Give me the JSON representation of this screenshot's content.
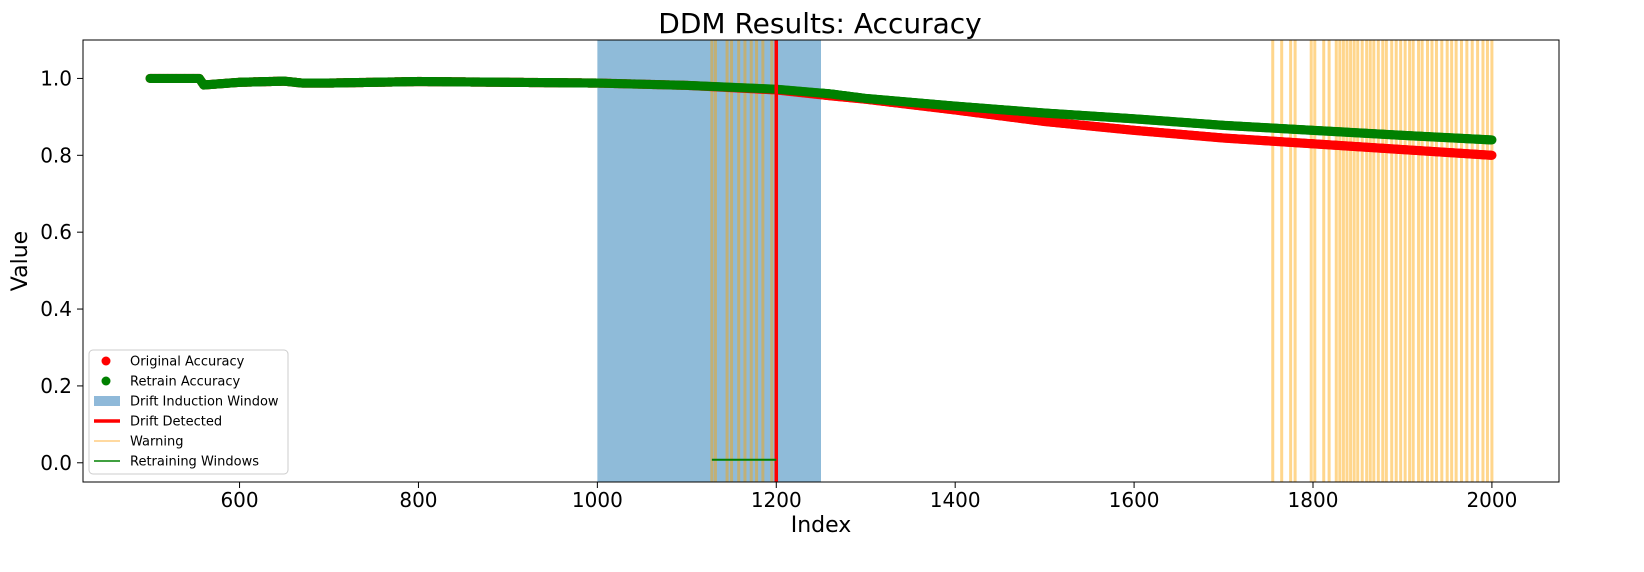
{
  "chart_data": {
    "type": "scatter",
    "title": "DDM Results: Accuracy",
    "xlabel": "Index",
    "ylabel": "Value",
    "xlim": [
      425,
      2075
    ],
    "ylim": [
      -0.05,
      1.1
    ],
    "xticks": [
      600,
      800,
      1000,
      1200,
      1400,
      1600,
      1800,
      2000
    ],
    "yticks": [
      0.0,
      0.2,
      0.4,
      0.6,
      0.8,
      1.0
    ],
    "xtick_labels": [
      "600",
      "800",
      "1000",
      "1200",
      "1400",
      "1600",
      "1800",
      "2000"
    ],
    "ytick_labels": [
      "0.0",
      "0.2",
      "0.4",
      "0.6",
      "0.8",
      "1.0"
    ],
    "grid": false,
    "legend_position": "lower-left",
    "series": [
      {
        "name": "Original Accuracy",
        "color": "#ff0000",
        "x": [
          500,
          555,
          560,
          600,
          650,
          670,
          700,
          800,
          900,
          1000,
          1100,
          1200,
          1260,
          1300,
          1400,
          1500,
          1600,
          1700,
          1800,
          1900,
          2000
        ],
        "y": [
          1.0,
          1.0,
          0.983,
          0.99,
          0.993,
          0.988,
          0.988,
          0.992,
          0.99,
          0.988,
          0.982,
          0.97,
          0.955,
          0.946,
          0.918,
          0.888,
          0.865,
          0.845,
          0.83,
          0.815,
          0.8
        ]
      },
      {
        "name": "Retrain Accuracy",
        "color": "#008000",
        "x": [
          500,
          555,
          560,
          600,
          650,
          670,
          700,
          800,
          900,
          1000,
          1100,
          1200,
          1260,
          1300,
          1400,
          1500,
          1600,
          1700,
          1800,
          1900,
          2000
        ],
        "y": [
          1.0,
          1.0,
          0.983,
          0.99,
          0.993,
          0.988,
          0.988,
          0.992,
          0.99,
          0.988,
          0.982,
          0.972,
          0.96,
          0.948,
          0.928,
          0.91,
          0.895,
          0.878,
          0.865,
          0.852,
          0.84
        ]
      }
    ],
    "drift_induction_window": {
      "label": "Drift Induction Window",
      "start": 1000,
      "end": 1250,
      "color": "#1f77b4"
    },
    "drift_detected": {
      "label": "Drift Detected",
      "x": 1200,
      "color": "#ff0000"
    },
    "warnings": {
      "label": "Warning",
      "color": "#ffa500",
      "x": [
        1128,
        1132,
        1145,
        1150,
        1158,
        1165,
        1172,
        1178,
        1185,
        1195,
        1755,
        1765,
        1775,
        1780,
        1798,
        1802,
        1812,
        1818,
        1826,
        1830,
        1834,
        1838,
        1842,
        1846,
        1850,
        1855,
        1860,
        1864,
        1868,
        1873,
        1878,
        1882,
        1888,
        1893,
        1898,
        1903,
        1908,
        1912,
        1918,
        1922,
        1928,
        1933,
        1938,
        1944,
        1950,
        1955,
        1960,
        1966,
        1972,
        1978,
        1984,
        1990,
        1995,
        2000
      ]
    },
    "retraining_windows": {
      "label": "Retraining Windows",
      "color": "#008000",
      "segments": [
        [
          1128,
          1200
        ]
      ],
      "y": 0.008
    }
  },
  "legend": {
    "items": [
      {
        "label": "Original Accuracy",
        "kind": "dot",
        "color": "#ff0000"
      },
      {
        "label": "Retrain Accuracy",
        "kind": "dot",
        "color": "#008000"
      },
      {
        "label": "Drift Induction Window",
        "kind": "patch",
        "color": "#8fb9d9"
      },
      {
        "label": "Drift Detected",
        "kind": "thickline",
        "color": "#ff0000"
      },
      {
        "label": "Warning",
        "kind": "thinline",
        "color": "#ffd9a0"
      },
      {
        "label": "Retraining Windows",
        "kind": "line",
        "color": "#008000"
      }
    ]
  }
}
